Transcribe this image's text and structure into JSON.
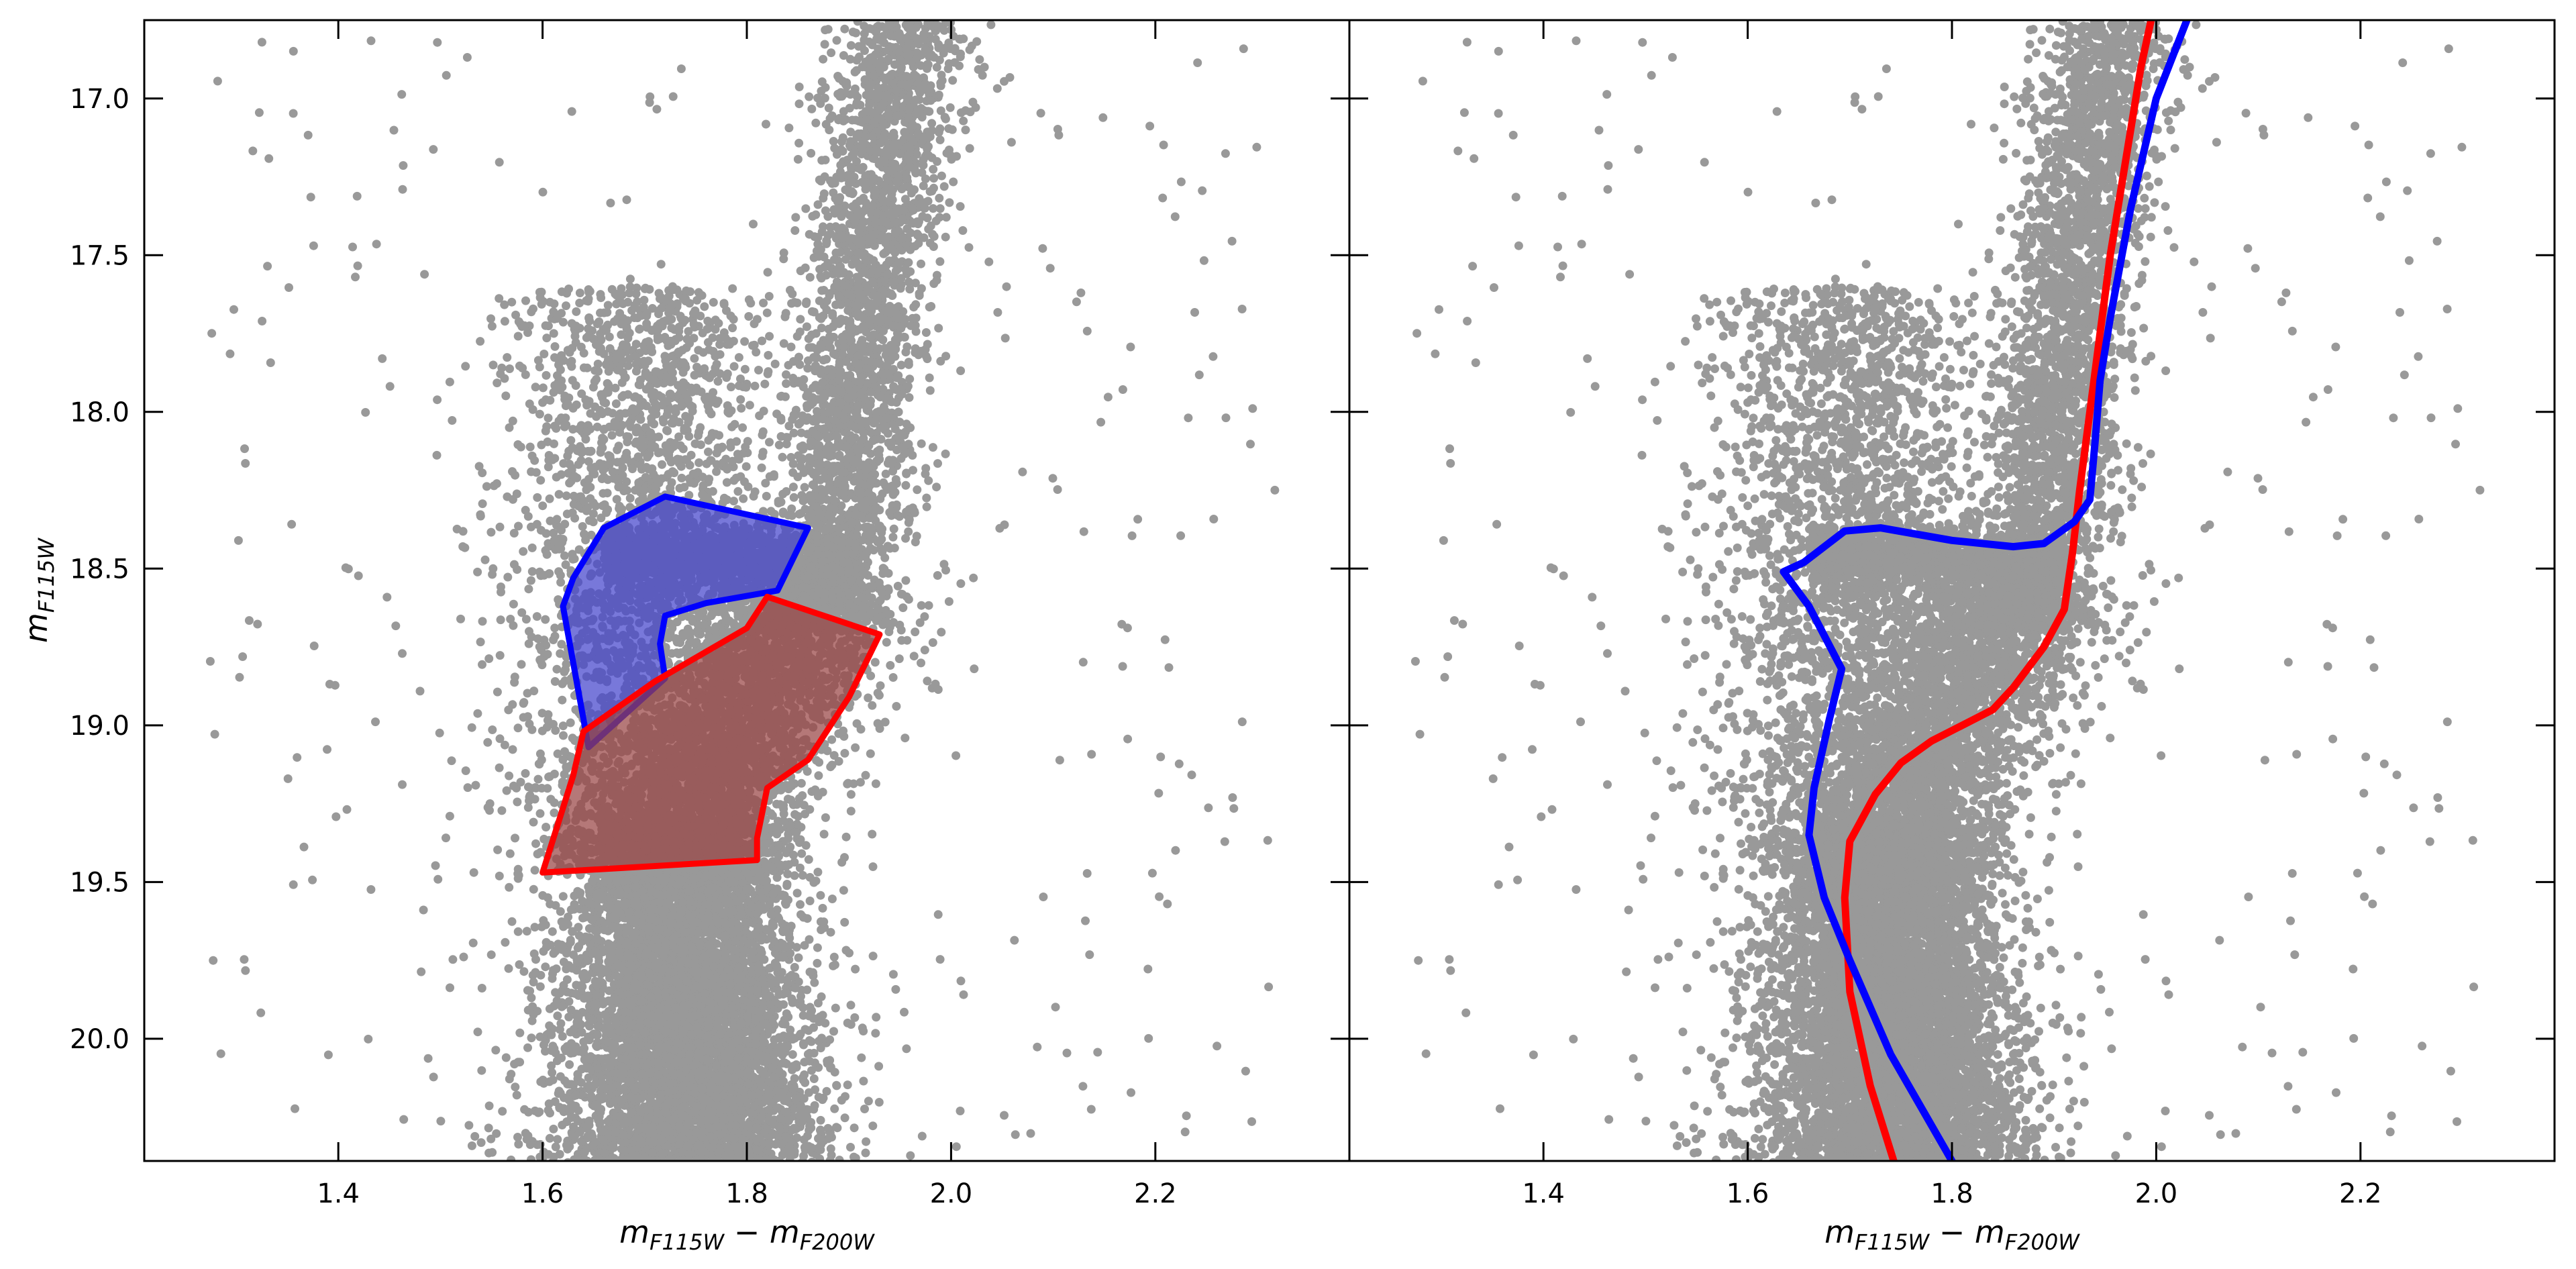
{
  "chart_data": [
    {
      "type": "scatter",
      "title": "",
      "xlabel": "m_F115W − m_F200W",
      "ylabel": "m_F115W",
      "xlim": [
        1.21,
        2.39
      ],
      "ylim": [
        20.39,
        16.75
      ],
      "y_inverted": true,
      "xticks": [
        "1.4",
        "1.6",
        "1.8",
        "2.0",
        "2.2"
      ],
      "xtick_values": [
        1.4,
        1.6,
        1.8,
        2.0,
        2.2
      ],
      "yticks": [
        "17.0",
        "17.5",
        "18.0",
        "18.5",
        "19.0",
        "19.5",
        "20.0"
      ],
      "ytick_values": [
        17.0,
        17.5,
        18.0,
        18.5,
        19.0,
        19.5,
        20.0
      ],
      "points_color": "#999999",
      "legend": "none",
      "grid": false,
      "description_of_scatter": "dense cloud of stars forming a main sequence turn-off, subgiant branch and red giant branch",
      "regions": [
        {
          "color": "#0000ff",
          "fill": "#4444cc",
          "vertices": [
            [
              1.72,
              18.27
            ],
            [
              1.66,
              18.37
            ],
            [
              1.63,
              18.53
            ],
            [
              1.62,
              18.62
            ],
            [
              1.645,
              19.07
            ],
            [
              1.72,
              18.85
            ],
            [
              1.715,
              18.74
            ],
            [
              1.72,
              18.65
            ],
            [
              1.75,
              18.62
            ],
            [
              1.76,
              18.61
            ],
            [
              1.83,
              18.57
            ],
            [
              1.86,
              18.37
            ]
          ]
        },
        {
          "color": "#ff0000",
          "fill": "#994444",
          "vertices": [
            [
              1.82,
              18.59
            ],
            [
              1.8,
              18.69
            ],
            [
              1.71,
              18.86
            ],
            [
              1.64,
              19.02
            ],
            [
              1.63,
              19.16
            ],
            [
              1.6,
              19.47
            ],
            [
              1.81,
              19.43
            ],
            [
              1.81,
              19.36
            ],
            [
              1.82,
              19.2
            ],
            [
              1.86,
              19.11
            ],
            [
              1.9,
              18.91
            ],
            [
              1.93,
              18.71
            ]
          ]
        }
      ]
    },
    {
      "type": "line",
      "title": "",
      "xlabel": "m_F115W − m_F200W",
      "ylabel": "",
      "xlim": [
        1.21,
        2.39
      ],
      "ylim": [
        20.39,
        16.75
      ],
      "y_inverted": true,
      "xticks": [
        "1.4",
        "1.6",
        "1.8",
        "2.0",
        "2.2"
      ],
      "xtick_values": [
        1.4,
        1.6,
        1.8,
        2.0,
        2.2
      ],
      "legend": "none",
      "grid": false,
      "series": [
        {
          "color": "#ff0000",
          "points": [
            [
              1.743,
              20.39
            ],
            [
              1.72,
              20.15
            ],
            [
              1.7,
              19.85
            ],
            [
              1.695,
              19.55
            ],
            [
              1.7,
              19.37
            ],
            [
              1.725,
              19.22
            ],
            [
              1.75,
              19.12
            ],
            [
              1.78,
              19.05
            ],
            [
              1.84,
              18.95
            ],
            [
              1.86,
              18.88
            ],
            [
              1.89,
              18.75
            ],
            [
              1.91,
              18.63
            ],
            [
              1.918,
              18.45
            ],
            [
              1.925,
              18.25
            ],
            [
              1.935,
              18.0
            ],
            [
              1.945,
              17.75
            ],
            [
              1.955,
              17.5
            ],
            [
              1.97,
              17.2
            ],
            [
              1.985,
              16.9
            ],
            [
              1.995,
              16.75
            ]
          ]
        },
        {
          "color": "#0000ff",
          "points": [
            [
              1.8,
              20.39
            ],
            [
              1.74,
              20.05
            ],
            [
              1.7,
              19.75
            ],
            [
              1.675,
              19.55
            ],
            [
              1.66,
              19.35
            ],
            [
              1.665,
              19.2
            ],
            [
              1.68,
              18.98
            ],
            [
              1.692,
              18.82
            ],
            [
              1.66,
              18.62
            ],
            [
              1.635,
              18.51
            ],
            [
              1.655,
              18.48
            ],
            [
              1.695,
              18.38
            ],
            [
              1.73,
              18.37
            ],
            [
              1.8,
              18.41
            ],
            [
              1.86,
              18.43
            ],
            [
              1.89,
              18.42
            ],
            [
              1.92,
              18.35
            ],
            [
              1.935,
              18.28
            ],
            [
              1.94,
              18.1
            ],
            [
              1.945,
              17.9
            ],
            [
              1.955,
              17.7
            ],
            [
              1.975,
              17.35
            ],
            [
              2.0,
              17.0
            ],
            [
              2.03,
              16.75
            ]
          ]
        }
      ]
    }
  ]
}
